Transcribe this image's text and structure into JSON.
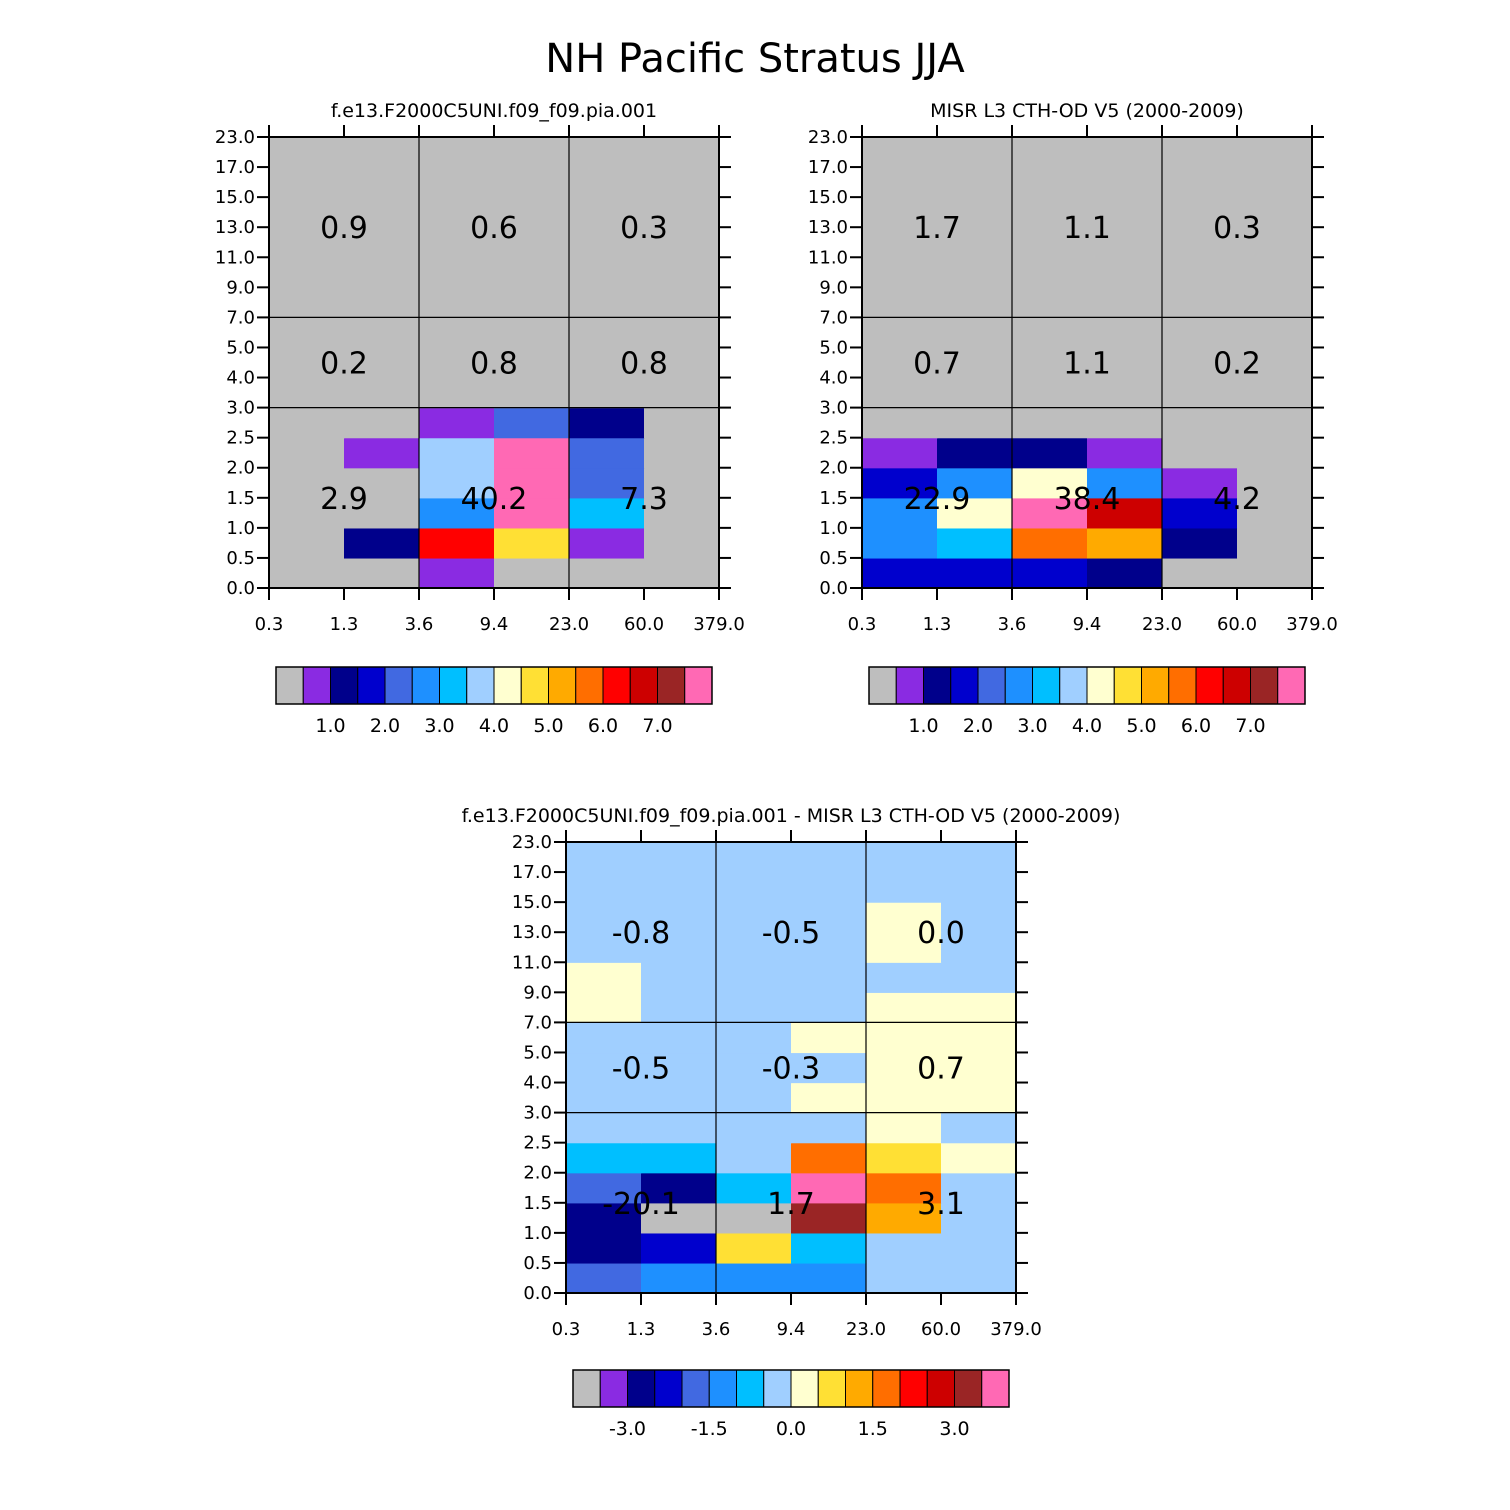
{
  "figure": {
    "title": "NH Pacific Stratus JJA"
  },
  "colors": {
    "palette": [
      "#bebebe",
      "#8a2be2",
      "#00008b",
      "#0000cd",
      "#4169e1",
      "#1e90ff",
      "#00bfff",
      "#a0cfff",
      "#ffffd0",
      "#ffe034",
      "#ffaa00",
      "#ff6e00",
      "#ff0000",
      "#cd0000",
      "#9a2525",
      "#ff69b4"
    ],
    "grid_line": "#000000"
  },
  "chart_data": [
    {
      "id": "model",
      "type": "heatmap",
      "title": "f.e13.F2000C5UNI.f09_f09.pia.001",
      "x_ticks": [
        "0.3",
        "1.3",
        "3.6",
        "9.4",
        "23.0",
        "60.0",
        "379.0"
      ],
      "y_ticks": [
        "0.0",
        "0.5",
        "1.0",
        "1.5",
        "2.0",
        "2.5",
        "3.0",
        "4.0",
        "5.0",
        "7.0",
        "9.0",
        "11.0",
        "13.0",
        "15.0",
        "17.0",
        "23.0"
      ],
      "fill_color_index_rows": [
        [
          0,
          0,
          1,
          0,
          0,
          0
        ],
        [
          0,
          2,
          12,
          9,
          1,
          0
        ],
        [
          0,
          0,
          5,
          15,
          6,
          0
        ],
        [
          0,
          0,
          7,
          15,
          4,
          0
        ],
        [
          0,
          1,
          7,
          15,
          4,
          0
        ],
        [
          0,
          0,
          1,
          4,
          2,
          0
        ],
        [
          0,
          0,
          0,
          0,
          0,
          0
        ],
        [
          0,
          0,
          0,
          0,
          0,
          0
        ],
        [
          0,
          0,
          0,
          0,
          0,
          0
        ],
        [
          0,
          0,
          0,
          0,
          0,
          0
        ],
        [
          0,
          0,
          0,
          0,
          0,
          0
        ],
        [
          0,
          0,
          0,
          0,
          0,
          0
        ],
        [
          0,
          0,
          0,
          0,
          0,
          0
        ],
        [
          0,
          0,
          0,
          0,
          0,
          0
        ],
        [
          0,
          0,
          0,
          0,
          0,
          0
        ]
      ],
      "bins": [
        {
          "label": "2.9",
          "col": 0,
          "row": 0
        },
        {
          "label": "40.2",
          "col": 1,
          "row": 0
        },
        {
          "label": "7.3",
          "col": 2,
          "row": 0
        },
        {
          "label": "0.2",
          "col": 0,
          "row": 1
        },
        {
          "label": "0.8",
          "col": 1,
          "row": 1
        },
        {
          "label": "0.8",
          "col": 2,
          "row": 1
        },
        {
          "label": "0.9",
          "col": 0,
          "row": 2
        },
        {
          "label": "0.6",
          "col": 1,
          "row": 2
        },
        {
          "label": "0.3",
          "col": 2,
          "row": 2
        }
      ],
      "colorbar_labels": [
        "1.0",
        "2.0",
        "3.0",
        "4.0",
        "5.0",
        "6.0",
        "7.0"
      ]
    },
    {
      "id": "obs",
      "type": "heatmap",
      "title": "MISR L3 CTH-OD V5 (2000-2009)",
      "x_ticks": [
        "0.3",
        "1.3",
        "3.6",
        "9.4",
        "23.0",
        "60.0",
        "379.0"
      ],
      "y_ticks": [
        "0.0",
        "0.5",
        "1.0",
        "1.5",
        "2.0",
        "2.5",
        "3.0",
        "4.0",
        "5.0",
        "7.0",
        "9.0",
        "11.0",
        "13.0",
        "15.0",
        "17.0",
        "23.0"
      ],
      "fill_color_index_rows": [
        [
          3,
          3,
          3,
          2,
          0,
          0
        ],
        [
          5,
          6,
          11,
          10,
          2,
          0
        ],
        [
          5,
          8,
          15,
          13,
          3,
          0
        ],
        [
          3,
          5,
          8,
          5,
          1,
          0
        ],
        [
          1,
          2,
          2,
          1,
          0,
          0
        ],
        [
          0,
          0,
          0,
          0,
          0,
          0
        ],
        [
          0,
          0,
          0,
          0,
          0,
          0
        ],
        [
          0,
          0,
          0,
          0,
          0,
          0
        ],
        [
          0,
          0,
          0,
          0,
          0,
          0
        ],
        [
          0,
          0,
          0,
          0,
          0,
          0
        ],
        [
          0,
          0,
          0,
          0,
          0,
          0
        ],
        [
          0,
          0,
          0,
          0,
          0,
          0
        ],
        [
          0,
          0,
          0,
          0,
          0,
          0
        ],
        [
          0,
          0,
          0,
          0,
          0,
          0
        ],
        [
          0,
          0,
          0,
          0,
          0,
          0
        ]
      ],
      "bins": [
        {
          "label": "22.9",
          "col": 0,
          "row": 0
        },
        {
          "label": "38.4",
          "col": 1,
          "row": 0
        },
        {
          "label": "4.2",
          "col": 2,
          "row": 0
        },
        {
          "label": "0.7",
          "col": 0,
          "row": 1
        },
        {
          "label": "1.1",
          "col": 1,
          "row": 1
        },
        {
          "label": "0.2",
          "col": 2,
          "row": 1
        },
        {
          "label": "1.7",
          "col": 0,
          "row": 2
        },
        {
          "label": "1.1",
          "col": 1,
          "row": 2
        },
        {
          "label": "0.3",
          "col": 2,
          "row": 2
        }
      ],
      "colorbar_labels": [
        "1.0",
        "2.0",
        "3.0",
        "4.0",
        "5.0",
        "6.0",
        "7.0"
      ]
    },
    {
      "id": "diff",
      "type": "heatmap",
      "title": "f.e13.F2000C5UNI.f09_f09.pia.001 - MISR L3 CTH-OD V5 (2000-2009)",
      "x_ticks": [
        "0.3",
        "1.3",
        "3.6",
        "9.4",
        "23.0",
        "60.0",
        "379.0"
      ],
      "y_ticks": [
        "0.0",
        "0.5",
        "1.0",
        "1.5",
        "2.0",
        "2.5",
        "3.0",
        "4.0",
        "5.0",
        "7.0",
        "9.0",
        "11.0",
        "13.0",
        "15.0",
        "17.0",
        "23.0"
      ],
      "fill_color_index_rows": [
        [
          4,
          5,
          5,
          5,
          7,
          7
        ],
        [
          2,
          3,
          9,
          6,
          7,
          7
        ],
        [
          2,
          0,
          0,
          14,
          10,
          7
        ],
        [
          4,
          2,
          6,
          15,
          11,
          7
        ],
        [
          6,
          6,
          7,
          11,
          9,
          8
        ],
        [
          7,
          7,
          7,
          7,
          8,
          7
        ],
        [
          7,
          7,
          7,
          8,
          8,
          8
        ],
        [
          7,
          7,
          7,
          7,
          8,
          8
        ],
        [
          7,
          7,
          7,
          8,
          8,
          8
        ],
        [
          8,
          7,
          7,
          7,
          8,
          8
        ],
        [
          8,
          7,
          7,
          7,
          7,
          7
        ],
        [
          7,
          7,
          7,
          7,
          8,
          7
        ],
        [
          7,
          7,
          7,
          7,
          8,
          7
        ],
        [
          7,
          7,
          7,
          7,
          7,
          7
        ],
        [
          7,
          7,
          7,
          7,
          7,
          7
        ]
      ],
      "bins": [
        {
          "label": "-20.1",
          "col": 0,
          "row": 0
        },
        {
          "label": "1.7",
          "col": 1,
          "row": 0
        },
        {
          "label": "3.1",
          "col": 2,
          "row": 0
        },
        {
          "label": "-0.5",
          "col": 0,
          "row": 1
        },
        {
          "label": "-0.3",
          "col": 1,
          "row": 1
        },
        {
          "label": "0.7",
          "col": 2,
          "row": 1
        },
        {
          "label": "-0.8",
          "col": 0,
          "row": 2
        },
        {
          "label": "-0.5",
          "col": 1,
          "row": 2
        },
        {
          "label": "0.0",
          "col": 2,
          "row": 2
        }
      ],
      "colorbar_labels": [
        "-3.0",
        "-1.5",
        "0.0",
        "1.5",
        "3.0"
      ]
    }
  ]
}
